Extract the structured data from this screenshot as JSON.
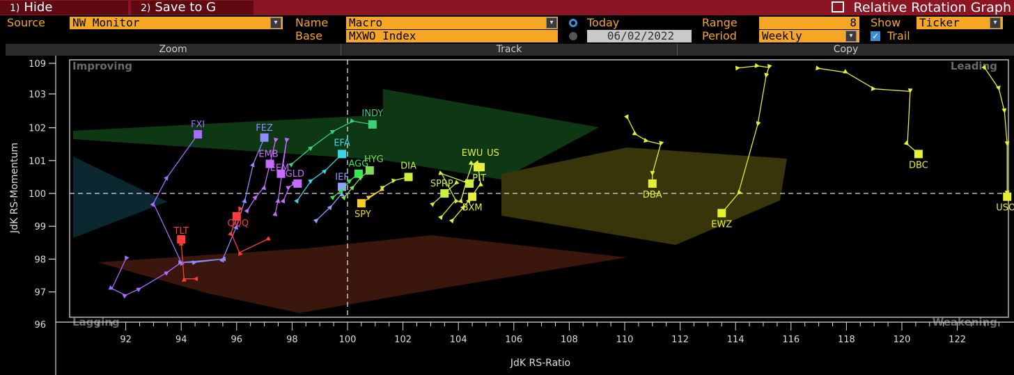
{
  "toolbar": {
    "hide_num": "1)",
    "hide_label": "Hide",
    "save_num": "2)",
    "save_label": "Save to G",
    "title": "Relative Rotation Graph"
  },
  "controls": {
    "source_label": "Source",
    "source_value": "NW Monitor",
    "name_label": "Name",
    "name_value": "Macro",
    "base_label": "Base",
    "base_value": "MXWO Index",
    "today_label": "Today",
    "date_value": "06/02/2022",
    "range_label": "Range",
    "range_value": "8",
    "period_label": "Period",
    "period_value": "Weekly",
    "show_label": "Show",
    "show_value": "Ticker",
    "trail_label": "Trail"
  },
  "tabs": [
    "Zoom",
    "Track",
    "Copy"
  ],
  "colors": {
    "accent": "#f5a623",
    "titlebar": "#8b1522"
  },
  "chart_data": {
    "type": "scatter",
    "xlabel": "JdK RS-Ratio",
    "ylabel": "JdK RS-Momentum",
    "xlim": [
      90.5,
      123.8
    ],
    "ylim": [
      96,
      109
    ],
    "x_ticks": [
      "92",
      "94",
      "96",
      "98",
      "100",
      "102",
      "104",
      "106",
      "108",
      "110",
      "112",
      "114",
      "116",
      "118",
      "120",
      "122"
    ],
    "y_ticks": [
      "97",
      "98",
      "99",
      "100",
      "101",
      "102",
      "103",
      "109"
    ],
    "quadrants": {
      "top_left": "Improving",
      "top_right": "Leading",
      "bottom_left": "Lagging",
      "bottom_right": "Weakening"
    },
    "center": {
      "x": 100,
      "y": 100
    },
    "series": [
      {
        "name": "FXI",
        "color": "#a86bff",
        "trail": [
          [
            92.0,
            98.0
          ],
          [
            91.5,
            97.1
          ],
          [
            92.0,
            96.9
          ],
          [
            92.5,
            97.1
          ],
          [
            93.5,
            97.6
          ],
          [
            94.0,
            97.9
          ],
          [
            93.0,
            99.7
          ],
          [
            93.5,
            100.5
          ],
          [
            94.6,
            101.8
          ]
        ]
      },
      {
        "name": "FEZ",
        "color": "#8c8cff",
        "trail": [
          [
            95.5,
            98.0
          ],
          [
            94.0,
            97.9
          ],
          [
            94.5,
            97.9
          ],
          [
            95.5,
            98.0
          ],
          [
            96.0,
            99.0
          ],
          [
            96.3,
            99.8
          ],
          [
            96.6,
            100.9
          ],
          [
            97.0,
            101.7
          ]
        ]
      },
      {
        "name": "TLT",
        "color": "#ff3b3b",
        "trail": [
          [
            94.5,
            97.4
          ],
          [
            94.1,
            97.4
          ],
          [
            94.0,
            98.5
          ],
          [
            94.0,
            98.6
          ]
        ]
      },
      {
        "name": "QQQ",
        "color": "#ff3b3b",
        "trail": [
          [
            97.1,
            98.6
          ],
          [
            96.1,
            98.2
          ],
          [
            95.8,
            98.8
          ],
          [
            96.1,
            99.5
          ],
          [
            96.0,
            99.3
          ]
        ]
      },
      {
        "name": "EMB",
        "color": "#c86bff",
        "trail": [
          [
            96.4,
            99.5
          ],
          [
            96.7,
            99.9
          ],
          [
            97.0,
            100.2
          ],
          [
            97.4,
            101.6
          ],
          [
            97.2,
            100.9
          ]
        ]
      },
      {
        "name": "EEM",
        "color": "#c86bff",
        "trail": [
          [
            97.4,
            99.4
          ],
          [
            97.5,
            99.8
          ],
          [
            97.8,
            101.6
          ],
          [
            97.6,
            100.6
          ]
        ]
      },
      {
        "name": "GLD",
        "color": "#c86bff",
        "trail": [
          [
            97.7,
            99.8
          ],
          [
            97.9,
            100.2
          ],
          [
            98.1,
            100.3
          ],
          [
            98.2,
            100.3
          ]
        ]
      },
      {
        "name": "IEF",
        "color": "#8fa0ff",
        "trail": [
          [
            98.9,
            99.2
          ],
          [
            99.4,
            99.6
          ],
          [
            99.8,
            100.0
          ],
          [
            99.8,
            100.2
          ]
        ]
      },
      {
        "name": "EFA",
        "color": "#39d6e8",
        "trail": [
          [
            98.2,
            99.8
          ],
          [
            98.7,
            100.4
          ],
          [
            99.2,
            100.7
          ],
          [
            99.8,
            101.2
          ]
        ]
      },
      {
        "name": "INDY",
        "color": "#3ad27a",
        "trail": [
          [
            98.0,
            100.9
          ],
          [
            98.7,
            101.4
          ],
          [
            99.5,
            101.9
          ],
          [
            100.2,
            102.2
          ],
          [
            100.9,
            102.1
          ]
        ]
      },
      {
        "name": "AGG",
        "color": "#33e855",
        "trail": [
          [
            99.5,
            99.9
          ],
          [
            99.8,
            100.1
          ],
          [
            100.1,
            100.4
          ],
          [
            100.4,
            100.6
          ]
        ]
      },
      {
        "name": "HYG",
        "color": "#7ddd55",
        "trail": [
          [
            99.9,
            99.9
          ],
          [
            100.2,
            100.2
          ],
          [
            100.5,
            100.5
          ],
          [
            100.8,
            100.7
          ]
        ]
      },
      {
        "name": "SPY",
        "color": "#f5d020",
        "trail": [
          [
            100.8,
            99.9
          ],
          [
            101.2,
            100.1
          ],
          [
            100.5,
            99.7
          ]
        ]
      },
      {
        "name": "DIA",
        "color": "#c9ef40",
        "trail": [
          [
            101.3,
            100.2
          ],
          [
            101.7,
            100.4
          ],
          [
            102.2,
            100.5
          ]
        ]
      },
      {
        "name": "SPRP",
        "color": "#c9ef40",
        "trail": [
          [
            103.1,
            99.7
          ],
          [
            103.5,
            100.0
          ],
          [
            103.9,
            100.3
          ],
          [
            103.5,
            100.0
          ]
        ]
      },
      {
        "name": "PIT",
        "color": "#c9ef40",
        "trail": [
          [
            103.4,
            99.3
          ],
          [
            103.9,
            99.8
          ],
          [
            103.4,
            100.6
          ],
          [
            104.4,
            100.3
          ]
        ]
      },
      {
        "name": "BXM",
        "color": "#e6ef40",
        "trail": [
          [
            103.8,
            99.2
          ],
          [
            104.2,
            99.6
          ],
          [
            104.5,
            99.9
          ]
        ]
      },
      {
        "name": "EWU",
        "color": "#e6ef40",
        "trail": [
          [
            104.1,
            99.8
          ],
          [
            104.3,
            100.4
          ],
          [
            104.5,
            100.9
          ],
          [
            104.7,
            100.8
          ]
        ]
      },
      {
        "name": "US",
        "color": "#e6ef40",
        "trail": [
          [
            104.4,
            99.8
          ],
          [
            104.8,
            100.3
          ],
          [
            104.7,
            100.9
          ],
          [
            104.8,
            100.8
          ]
        ]
      },
      {
        "name": "DBA",
        "color": "#e6f030",
        "trail": [
          [
            110.1,
            102.3
          ],
          [
            110.4,
            101.8
          ],
          [
            110.8,
            101.6
          ],
          [
            111.3,
            101.5
          ],
          [
            111.0,
            100.6
          ],
          [
            111.0,
            100.3
          ]
        ]
      },
      {
        "name": "EWZ",
        "color": "#e6f030",
        "trail": [
          [
            114.1,
            108.1
          ],
          [
            114.8,
            108.5
          ],
          [
            115.2,
            108.2
          ],
          [
            115.1,
            106.5
          ],
          [
            114.8,
            102.1
          ],
          [
            114.1,
            100.0
          ],
          [
            113.5,
            99.4
          ]
        ]
      },
      {
        "name": "DBC",
        "color": "#e6f030",
        "trail": [
          [
            117.0,
            108.0
          ],
          [
            118.0,
            107.2
          ],
          [
            119.0,
            104.0
          ],
          [
            120.3,
            103.5
          ],
          [
            120.2,
            101.5
          ],
          [
            120.6,
            101.2
          ]
        ]
      },
      {
        "name": "USO",
        "color": "#e6f030",
        "trail": [
          [
            123.0,
            108.0
          ],
          [
            123.5,
            104.0
          ],
          [
            123.7,
            102.5
          ],
          [
            123.8,
            101.5
          ],
          [
            123.8,
            100.0
          ],
          [
            123.8,
            99.9
          ]
        ]
      }
    ]
  }
}
